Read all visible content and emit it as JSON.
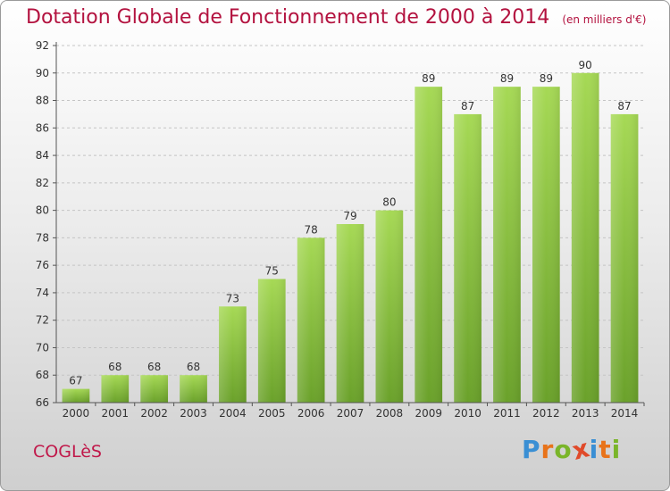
{
  "header": {
    "title": "Dotation Globale de Fonctionnement de 2000 à 2014",
    "subtitle": "(en milliers d'€)"
  },
  "footer": {
    "commune": "COGLèS",
    "logo": {
      "letters": [
        "P",
        "r",
        "o",
        "x",
        "i",
        "t",
        "i"
      ],
      "colors": [
        "#3a8fd4",
        "#e8731a",
        "#7ab52a",
        "#e04a2a",
        "#3a8fd4",
        "#e8731a",
        "#7ab52a"
      ]
    }
  },
  "chart_data": {
    "type": "bar",
    "title": "Dotation Globale de Fonctionnement de 2000 à 2014",
    "subtitle": "(en milliers d'€)",
    "xlabel": "",
    "ylabel": "",
    "categories": [
      "2000",
      "2001",
      "2002",
      "2003",
      "2004",
      "2005",
      "2006",
      "2007",
      "2008",
      "2009",
      "2010",
      "2011",
      "2012",
      "2013",
      "2014"
    ],
    "values": [
      67,
      68,
      68,
      68,
      73,
      75,
      78,
      79,
      80,
      89,
      87,
      89,
      89,
      90,
      87
    ],
    "ylim": [
      66,
      92
    ],
    "yticks": [
      66,
      68,
      70,
      72,
      74,
      76,
      78,
      80,
      82,
      84,
      86,
      88,
      90,
      92
    ],
    "grid": true,
    "bar_color": "#8cc63f",
    "bar_color_light": "#a6d955",
    "bar_color_dark": "#6aa12a"
  }
}
